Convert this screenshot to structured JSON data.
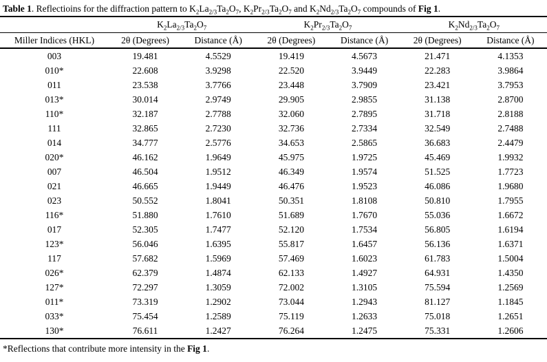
{
  "caption": {
    "label": "Table 1",
    "text_after_label": ". Reflectioins for the diffraction pattern to ",
    "sep1": ", ",
    "sep2": " and ",
    "text_before_fig": " compounds of ",
    "fig_label": "Fig 1",
    "period": "."
  },
  "compounds": [
    "K~2~La~2/3~Ta~2~O~7~",
    "K~2~Pr~2/3~Ta~2~O~7~",
    "K~2~Nd~2/3~Ta~2~O~7~"
  ],
  "columns": [
    "Miller Indices (HKL)",
    "2θ (Degrees)",
    "Distance (Å)",
    "2θ (Degrees)",
    "Distance (Å)",
    "2θ (Degrees)",
    "Distance (Å)"
  ],
  "rows": [
    [
      "003",
      "19.481",
      "4.5529",
      "19.419",
      "4.5673",
      "21.471",
      "4.1353"
    ],
    [
      "010*",
      "22.608",
      "3.9298",
      "22.520",
      "3.9449",
      "22.283",
      "3.9864"
    ],
    [
      "011",
      "23.538",
      "3.7766",
      "23.448",
      "3.7909",
      "23.421",
      "3.7953"
    ],
    [
      "013*",
      "30.014",
      "2.9749",
      "29.905",
      "2.9855",
      "31.138",
      "2.8700"
    ],
    [
      "110*",
      "32.187",
      "2.7788",
      "32.060",
      "2.7895",
      "31.718",
      "2.8188"
    ],
    [
      "111",
      "32.865",
      "2.7230",
      "32.736",
      "2.7334",
      "32.549",
      "2.7488"
    ],
    [
      "014",
      "34.777",
      "2.5776",
      "34.653",
      "2.5865",
      "36.683",
      "2.4479"
    ],
    [
      "020*",
      "46.162",
      "1.9649",
      "45.975",
      "1.9725",
      "45.469",
      "1.9932"
    ],
    [
      "007",
      "46.504",
      "1.9512",
      "46.349",
      "1.9574",
      "51.525",
      "1.7723"
    ],
    [
      "021",
      "46.665",
      "1.9449",
      "46.476",
      "1.9523",
      "46.086",
      "1.9680"
    ],
    [
      "023",
      "50.552",
      "1.8041",
      "50.351",
      "1.8108",
      "50.810",
      "1.7955"
    ],
    [
      "116*",
      "51.880",
      "1.7610",
      "51.689",
      "1.7670",
      "55.036",
      "1.6672"
    ],
    [
      "017",
      "52.305",
      "1.7477",
      "52.120",
      "1.7534",
      "56.805",
      "1.6194"
    ],
    [
      "123*",
      "56.046",
      "1.6395",
      "55.817",
      "1.6457",
      "56.136",
      "1.6371"
    ],
    [
      "117",
      "57.682",
      "1.5969",
      "57.469",
      "1.6023",
      "61.783",
      "1.5004"
    ],
    [
      "026*",
      "62.379",
      "1.4874",
      "62.133",
      "1.4927",
      "64.931",
      "1.4350"
    ],
    [
      "127*",
      "72.297",
      "1.3059",
      "72.002",
      "1.3105",
      "75.594",
      "1.2569"
    ],
    [
      "011*",
      "73.319",
      "1.2902",
      "73.044",
      "1.2943",
      "81.127",
      "1.1845"
    ],
    [
      "033*",
      "75.454",
      "1.2589",
      "75.119",
      "1.2633",
      "75.018",
      "1.2651"
    ],
    [
      "130*",
      "76.611",
      "1.2427",
      "76.264",
      "1.2475",
      "75.331",
      "1.2606"
    ]
  ],
  "footnote": {
    "text": "*Reflections that contribute more intensity in the ",
    "fig_label": "Fig 1",
    "period": "."
  },
  "colors": {
    "text": "#000000",
    "background": "#ffffff",
    "rule": "#000000"
  }
}
